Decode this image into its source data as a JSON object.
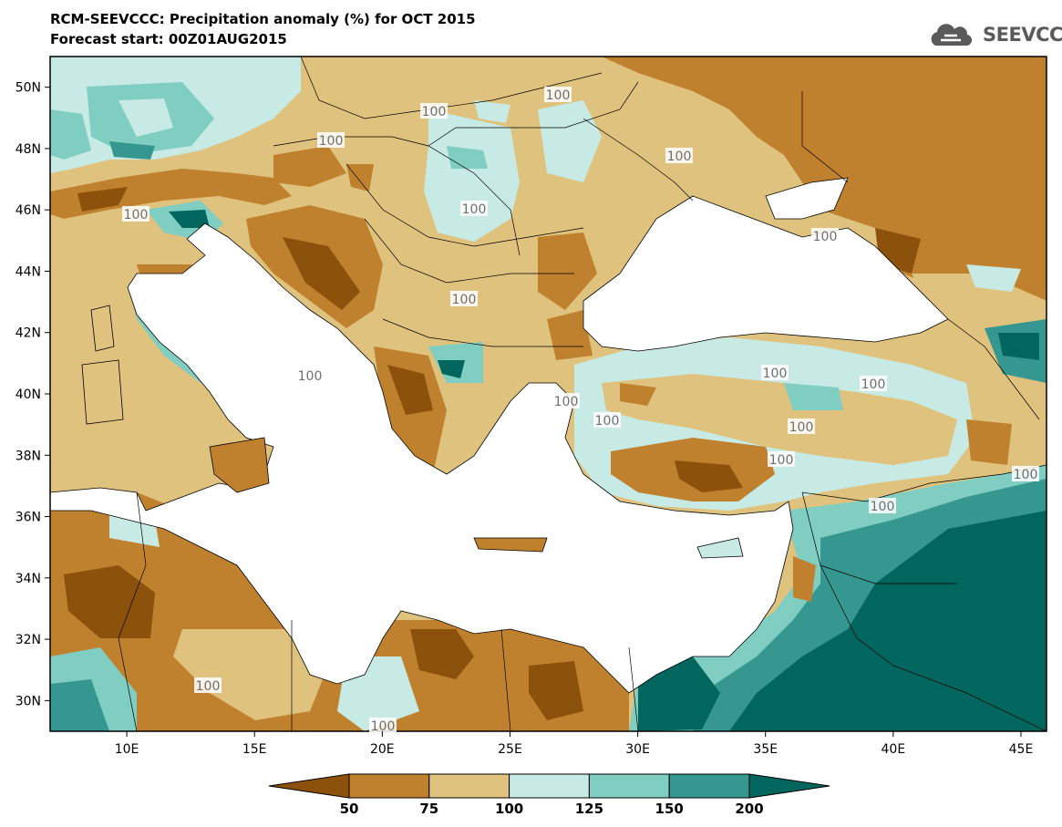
{
  "title_line1": "RCM-SEEVCCC: Precipitation anomaly (%) for OCT 2015",
  "title_line2": "Forecast start: 00Z01AUG2015",
  "logo_text": "SEEVCCC",
  "lat_labels": [
    "50N",
    "48N",
    "46N",
    "44N",
    "42N",
    "40N",
    "38N",
    "36N",
    "34N",
    "32N",
    "30N"
  ],
  "lat_values": [
    50,
    48,
    46,
    44,
    42,
    40,
    38,
    36,
    34,
    32,
    30
  ],
  "lon_labels": [
    "10E",
    "15E",
    "20E",
    "25E",
    "30E",
    "35E",
    "40E",
    "45E"
  ],
  "lon_values": [
    10,
    15,
    20,
    25,
    30,
    35,
    40,
    45
  ],
  "contour_label_text": "100",
  "colorbar": {
    "ticks": [
      "50",
      "75",
      "100",
      "125",
      "150",
      "200"
    ],
    "colors": [
      "#8c510a",
      "#bf812d",
      "#dfc27d",
      "#c7eae5",
      "#80cdc1",
      "#35978f",
      "#01665e"
    ]
  },
  "legend_classes": [
    {
      "range": "<50",
      "color": "#8c510a"
    },
    {
      "range": "50-75",
      "color": "#bf812d"
    },
    {
      "range": "75-100",
      "color": "#dfc27d"
    },
    {
      "range": "100-125",
      "color": "#c7eae5"
    },
    {
      "range": "125-150",
      "color": "#80cdc1"
    },
    {
      "range": "150-200",
      "color": "#35978f"
    },
    {
      "range": ">200",
      "color": "#01665e"
    }
  ]
}
